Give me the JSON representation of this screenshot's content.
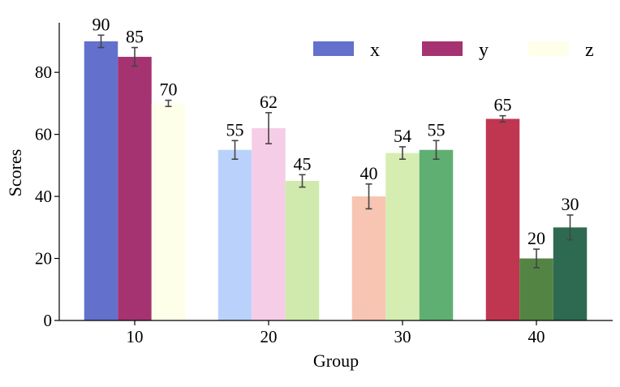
{
  "chart_data": {
    "type": "bar",
    "xlabel": "Group",
    "ylabel": "Scores",
    "categories": [
      "10",
      "20",
      "30",
      "40"
    ],
    "ylim": [
      0,
      96
    ],
    "yticks": [
      "0",
      "20",
      "40",
      "60",
      "80"
    ],
    "legend_placement": "top-right",
    "grid": false,
    "legend": [
      {
        "name": "x",
        "color": "#6370cc"
      },
      {
        "name": "y",
        "color": "#a53371"
      },
      {
        "name": "z",
        "color": "#feffe9"
      }
    ],
    "series": [
      {
        "name": "x",
        "values": [
          90,
          55,
          40,
          65
        ],
        "errors": [
          2,
          3,
          4,
          1
        ]
      },
      {
        "name": "y",
        "values": [
          85,
          62,
          54,
          20
        ],
        "errors": [
          3,
          5,
          2,
          3
        ]
      },
      {
        "name": "z",
        "values": [
          70,
          45,
          55,
          30
        ],
        "errors": [
          1,
          2,
          3,
          4
        ]
      }
    ],
    "bar_colors": [
      [
        "#6370cc",
        "#a53371",
        "#feffe9"
      ],
      [
        "#bad2fb",
        "#f6cde6",
        "#cfeaac"
      ],
      [
        "#f7c5b2",
        "#d6edb1",
        "#5faf73"
      ],
      [
        "#c03650",
        "#548443",
        "#2e6a51"
      ]
    ],
    "data_labels": [
      [
        "90",
        "85",
        "70"
      ],
      [
        "55",
        "62",
        "45"
      ],
      [
        "40",
        "54",
        "55"
      ],
      [
        "65",
        "20",
        "30"
      ]
    ]
  }
}
